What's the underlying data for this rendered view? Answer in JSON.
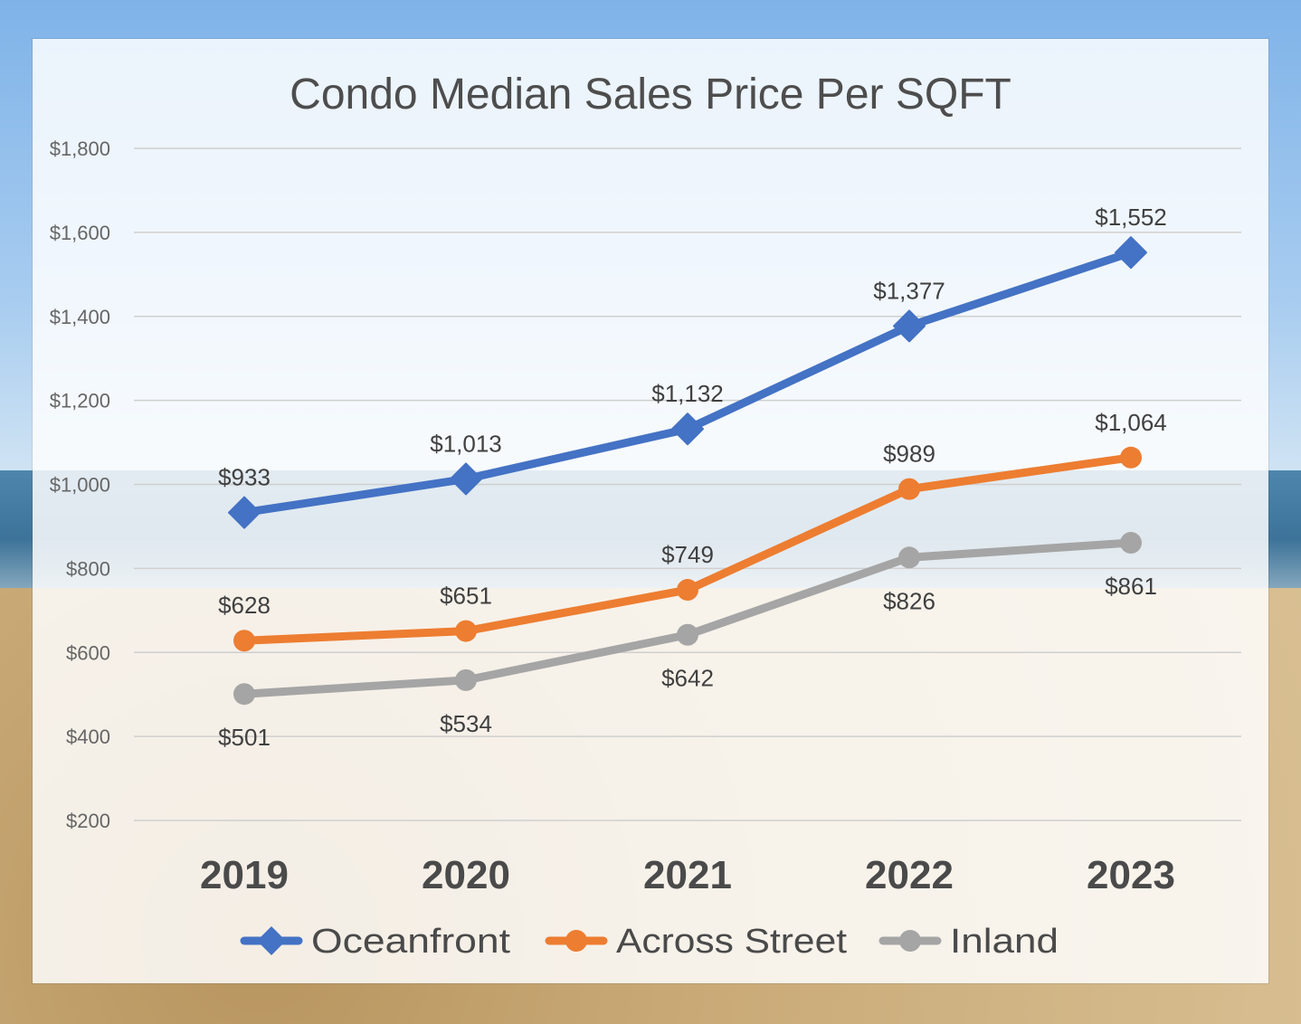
{
  "chart_data": {
    "type": "line",
    "title": "Condo Median Sales Price Per SQFT",
    "xlabel": "",
    "ylabel": "",
    "categories": [
      "2019",
      "2020",
      "2021",
      "2022",
      "2023"
    ],
    "ylim": [
      200,
      1800
    ],
    "yticks": [
      200,
      400,
      600,
      800,
      1000,
      1200,
      1400,
      1600,
      1800
    ],
    "ytick_labels": [
      "$200",
      "$400",
      "$600",
      "$800",
      "$1,000",
      "$1,200",
      "$1,400",
      "$1,600",
      "$1,800"
    ],
    "grid": true,
    "legend_position": "bottom",
    "series": [
      {
        "name": "Oceanfront",
        "color": "#4472c4",
        "marker": "diamond",
        "values": [
          933,
          1013,
          1132,
          1377,
          1552
        ],
        "labels": [
          "$933",
          "$1,013",
          "$1,132",
          "$1,377",
          "$1,552"
        ],
        "label_position": "above"
      },
      {
        "name": "Across Street",
        "color": "#ed7d31",
        "marker": "circle",
        "values": [
          628,
          651,
          749,
          989,
          1064
        ],
        "labels": [
          "$628",
          "$651",
          "$749",
          "$989",
          "$1,064"
        ],
        "label_position": "above"
      },
      {
        "name": "Inland",
        "color": "#a5a5a5",
        "marker": "circle",
        "values": [
          501,
          534,
          642,
          826,
          861
        ],
        "labels": [
          "$501",
          "$534",
          "$642",
          "$826",
          "$861"
        ],
        "label_position": "below"
      }
    ]
  }
}
